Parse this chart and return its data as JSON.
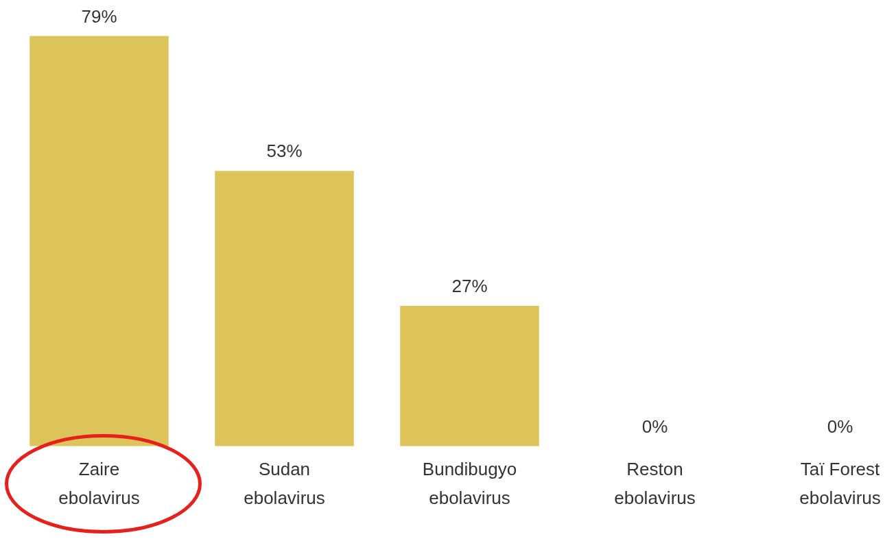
{
  "chart_data": {
    "type": "bar",
    "categories": [
      "Zaire ebolavirus",
      "Sudan ebolavirus",
      "Bundibugyo ebolavirus",
      "Reston ebolavirus",
      "Taï Forest ebolavirus"
    ],
    "values": [
      79,
      53,
      27,
      0,
      0
    ],
    "value_labels": [
      "79%",
      "53%",
      "27%",
      "0%",
      "0%"
    ],
    "color": "#dcc35a"
  }
}
